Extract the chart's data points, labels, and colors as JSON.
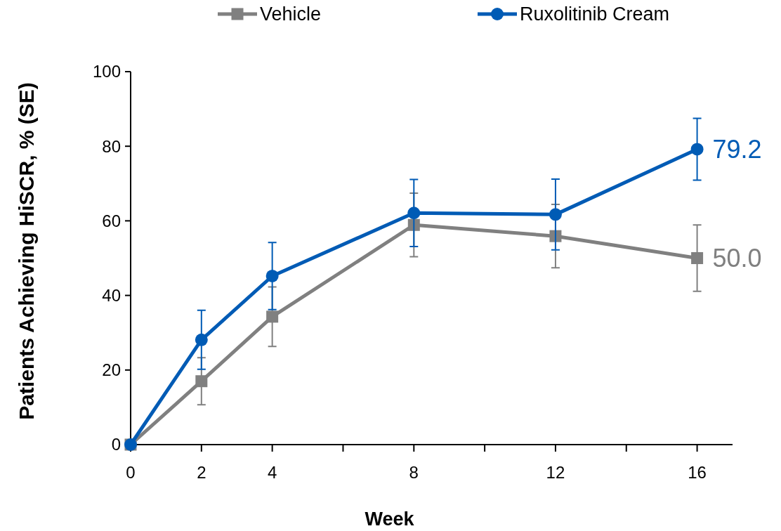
{
  "chart_data": {
    "type": "line",
    "xlabel": "Week",
    "ylabel": "Patients Achieving HiSCR, % (SE)",
    "x": [
      0,
      2,
      4,
      8,
      12,
      16
    ],
    "xlim": [
      0,
      17
    ],
    "xticks": [
      0,
      2,
      4,
      {
        "value": 6,
        "label": null
      },
      8,
      {
        "value": 10,
        "label": null
      },
      12,
      {
        "value": 14,
        "label": null
      },
      16
    ],
    "ylim": [
      0,
      100
    ],
    "yticks": [
      0,
      20,
      40,
      60,
      80,
      100
    ],
    "grid": false,
    "legend": "top",
    "line_style": "solid",
    "series": [
      {
        "name": "Vehicle",
        "color": "#808080",
        "marker": "square",
        "values": [
          0,
          17.0,
          34.3,
          58.9,
          55.9,
          50.0
        ],
        "errors": [
          null,
          6.3,
          8.0,
          8.5,
          8.5,
          8.9
        ],
        "value_labels": [
          null,
          null,
          null,
          null,
          null,
          "50.0"
        ]
      },
      {
        "name": "Ruxolitinib Cream",
        "color": "#005bb5",
        "marker": "circle",
        "values": [
          0,
          28.1,
          45.2,
          62.1,
          61.7,
          79.2
        ],
        "errors": [
          null,
          7.9,
          9.0,
          9.0,
          9.5,
          8.3
        ],
        "value_labels": [
          null,
          null,
          null,
          null,
          null,
          "79.2"
        ]
      }
    ]
  }
}
